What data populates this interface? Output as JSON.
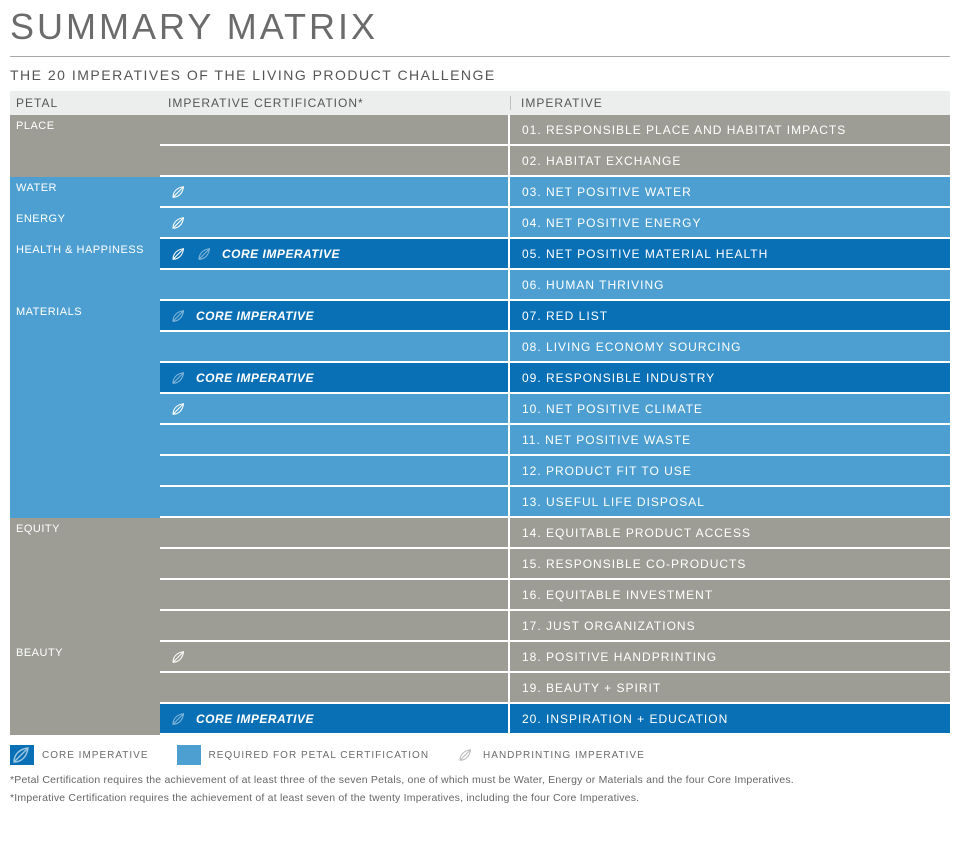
{
  "title": "SUMMARY MATRIX",
  "subtitle": "THE 20 IMPERATIVES OF THE LIVING PRODUCT CHALLENGE",
  "colors": {
    "gray": "#9d9d96",
    "blue_light": "#4d9fd1",
    "blue_dark": "#0a70b6",
    "header_bg": "#eceeee",
    "text_muted": "#6b6b6b"
  },
  "headers": {
    "petal": "PETAL",
    "cert": "IMPERATIVE CERTIFICATION*",
    "imp": "IMPERATIVE"
  },
  "core_label": "CORE IMPERATIVE",
  "petals": [
    {
      "name": "PLACE",
      "color": "gray",
      "rowspan": 2
    },
    {
      "name": "WATER",
      "color": "blue_light",
      "rowspan": 1
    },
    {
      "name": "ENERGY",
      "color": "blue_light",
      "rowspan": 1
    },
    {
      "name": "HEALTH & HAPPINESS",
      "color": "blue_light",
      "rowspan": 2
    },
    {
      "name": "MATERIALS",
      "color": "blue_light",
      "rowspan": 7
    },
    {
      "name": "EQUITY",
      "color": "gray",
      "rowspan": 4
    },
    {
      "name": "BEAUTY",
      "color": "gray",
      "rowspan": 3
    }
  ],
  "rows": [
    {
      "petal_idx": 0,
      "imp": "01. RESPONSIBLE PLACE AND HABITAT IMPACTS",
      "cert_bg": "gray",
      "imp_bg": "gray",
      "hand": false,
      "hand_ghost": false,
      "core": false
    },
    {
      "petal_idx": 0,
      "imp": "02. HABITAT EXCHANGE",
      "cert_bg": "gray",
      "imp_bg": "gray",
      "hand": false,
      "hand_ghost": false,
      "core": false
    },
    {
      "petal_idx": 1,
      "imp": "03. NET POSITIVE WATER",
      "cert_bg": "blue_light",
      "imp_bg": "blue_light",
      "hand": true,
      "hand_ghost": false,
      "core": false
    },
    {
      "petal_idx": 2,
      "imp": "04. NET POSITIVE ENERGY",
      "cert_bg": "blue_light",
      "imp_bg": "blue_light",
      "hand": true,
      "hand_ghost": false,
      "core": false
    },
    {
      "petal_idx": 3,
      "imp": "05. NET POSITIVE MATERIAL HEALTH",
      "cert_bg": "blue_dark",
      "imp_bg": "blue_dark",
      "hand": true,
      "hand_ghost": true,
      "core": true
    },
    {
      "petal_idx": 3,
      "imp": "06. HUMAN THRIVING",
      "cert_bg": "blue_light",
      "imp_bg": "blue_light",
      "hand": false,
      "hand_ghost": false,
      "core": false
    },
    {
      "petal_idx": 4,
      "imp": "07. RED LIST",
      "cert_bg": "blue_dark",
      "imp_bg": "blue_dark",
      "hand": false,
      "hand_ghost": true,
      "core": true
    },
    {
      "petal_idx": 4,
      "imp": "08. LIVING ECONOMY SOURCING",
      "cert_bg": "blue_light",
      "imp_bg": "blue_light",
      "hand": false,
      "hand_ghost": false,
      "core": false
    },
    {
      "petal_idx": 4,
      "imp": "09. RESPONSIBLE INDUSTRY",
      "cert_bg": "blue_dark",
      "imp_bg": "blue_dark",
      "hand": false,
      "hand_ghost": true,
      "core": true
    },
    {
      "petal_idx": 4,
      "imp": "10.  NET POSITIVE CLIMATE",
      "cert_bg": "blue_light",
      "imp_bg": "blue_light",
      "hand": true,
      "hand_ghost": false,
      "core": false
    },
    {
      "petal_idx": 4,
      "imp": "11.  NET POSITIVE WASTE",
      "cert_bg": "blue_light",
      "imp_bg": "blue_light",
      "hand": false,
      "hand_ghost": false,
      "core": false
    },
    {
      "petal_idx": 4,
      "imp": "12. PRODUCT FIT TO USE",
      "cert_bg": "blue_light",
      "imp_bg": "blue_light",
      "hand": false,
      "hand_ghost": false,
      "core": false
    },
    {
      "petal_idx": 4,
      "imp": "13. USEFUL LIFE DISPOSAL",
      "cert_bg": "blue_light",
      "imp_bg": "blue_light",
      "hand": false,
      "hand_ghost": false,
      "core": false
    },
    {
      "petal_idx": 5,
      "imp": "14. EQUITABLE PRODUCT ACCESS",
      "cert_bg": "gray",
      "imp_bg": "gray",
      "hand": false,
      "hand_ghost": false,
      "core": false
    },
    {
      "petal_idx": 5,
      "imp": "15. RESPONSIBLE CO-PRODUCTS",
      "cert_bg": "gray",
      "imp_bg": "gray",
      "hand": false,
      "hand_ghost": false,
      "core": false
    },
    {
      "petal_idx": 5,
      "imp": "16. EQUITABLE INVESTMENT",
      "cert_bg": "gray",
      "imp_bg": "gray",
      "hand": false,
      "hand_ghost": false,
      "core": false
    },
    {
      "petal_idx": 5,
      "imp": "17. JUST ORGANIZATIONS",
      "cert_bg": "gray",
      "imp_bg": "gray",
      "hand": false,
      "hand_ghost": false,
      "core": false
    },
    {
      "petal_idx": 6,
      "imp": "18. POSITIVE HANDPRINTING",
      "cert_bg": "gray",
      "imp_bg": "gray",
      "hand": true,
      "hand_ghost": false,
      "core": false
    },
    {
      "petal_idx": 6,
      "imp": "19. BEAUTY + SPIRIT",
      "cert_bg": "gray",
      "imp_bg": "gray",
      "hand": false,
      "hand_ghost": false,
      "core": false
    },
    {
      "petal_idx": 6,
      "imp": "20. INSPIRATION + EDUCATION",
      "cert_bg": "blue_dark",
      "imp_bg": "blue_dark",
      "hand": false,
      "hand_ghost": true,
      "core": true
    }
  ],
  "legend": {
    "core": "CORE IMPERATIVE",
    "petal": "REQUIRED FOR PETAL CERTIFICATION",
    "hand": "HANDPRINTING IMPERATIVE"
  },
  "footnotes": [
    "*Petal Certification requires the achievement of at least three of the seven Petals, one of which must be Water, Energy or Materials and the four Core Imperatives.",
    "*Imperative Certification requires the achievement of at least seven of the twenty Imperatives, including the four Core Imperatives."
  ]
}
